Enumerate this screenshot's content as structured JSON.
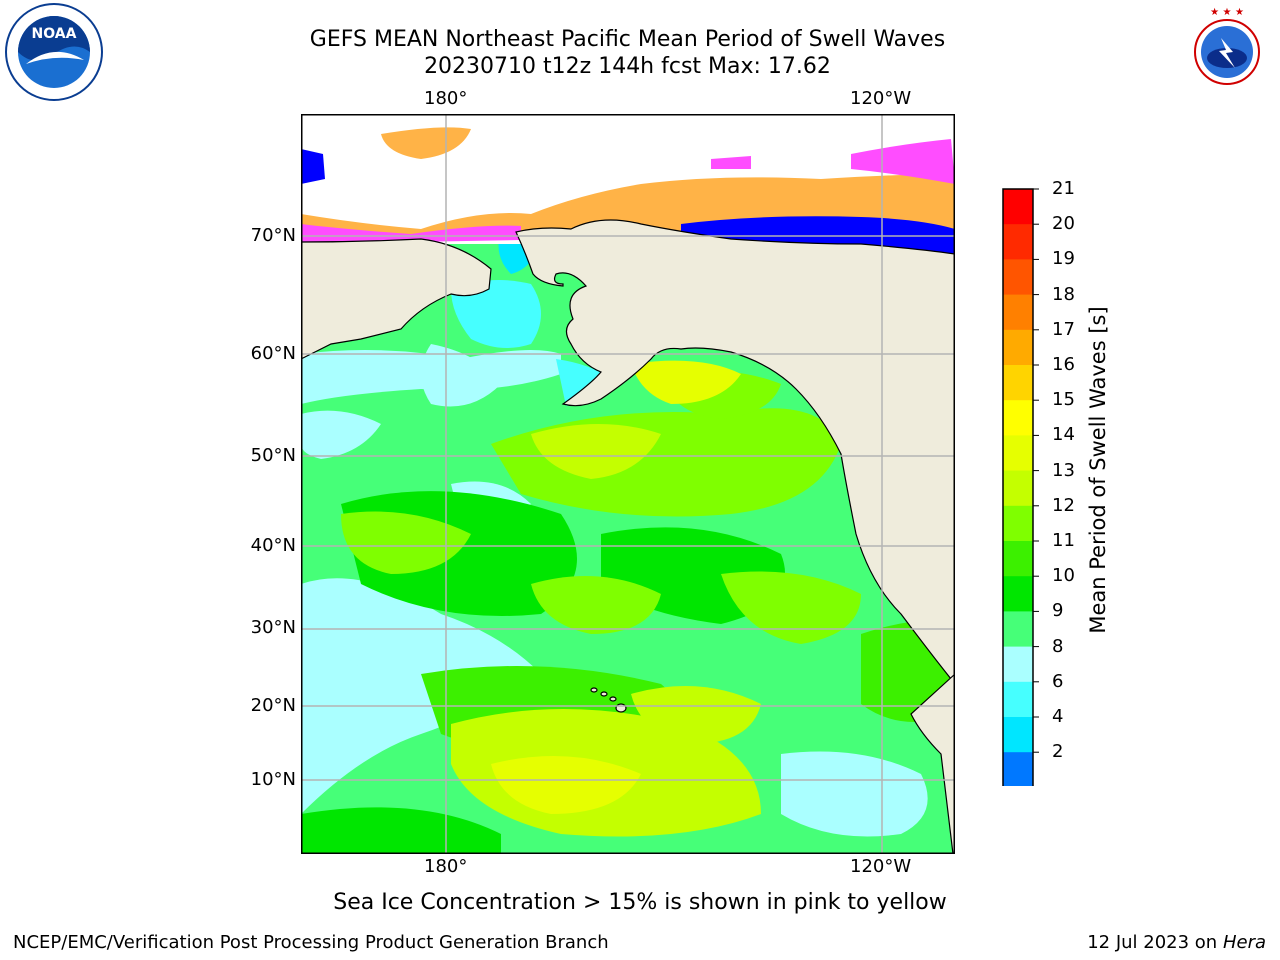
{
  "title_line1": "GEFS MEAN Northeast Pacific Mean Period of Swell Waves",
  "title_line2": "20230710 t12z 144h fcst   Max: 17.62",
  "lon_labels": [
    "180°",
    "120°W"
  ],
  "lat_labels": [
    "70°N",
    "60°N",
    "50°N",
    "40°N",
    "30°N",
    "20°N",
    "10°N"
  ],
  "colorbar": {
    "title": "Mean Period of Swell Waves [s]",
    "ticks": [
      "21",
      "20",
      "19",
      "18",
      "17",
      "16",
      "15",
      "14",
      "13",
      "12",
      "11",
      "10",
      "9",
      "8",
      "6",
      "4",
      "2"
    ],
    "colors": [
      "#ff0000",
      "#ff2a00",
      "#ff5500",
      "#ff8000",
      "#ffaa00",
      "#ffd400",
      "#ffff00",
      "#e6ff00",
      "#c4ff00",
      "#7fff00",
      "#3cf000",
      "#00e600",
      "#46ff78",
      "#aaffff",
      "#46ffff",
      "#00e6ff",
      "#0078ff"
    ],
    "under_color": "#0000ff"
  },
  "colors": {
    "land": "#efecdc",
    "sea_ice_pink": "#ff4dff",
    "sea_ice_orange": "#ffb347",
    "deep_blue": "#0000ff",
    "grid": "#b4b4b4"
  },
  "footer": {
    "sea_ice_note": "Sea Ice Concentration > 15% is shown in pink to yellow",
    "credit": "NCEP/EMC/Verification Post Processing Product Generation Branch",
    "date": "12 Jul 2023 on",
    "machine": "Hera"
  },
  "logos": {
    "noaa_text": "NOAA",
    "nws_text": "NATIONAL WEATHER SERVICE"
  }
}
